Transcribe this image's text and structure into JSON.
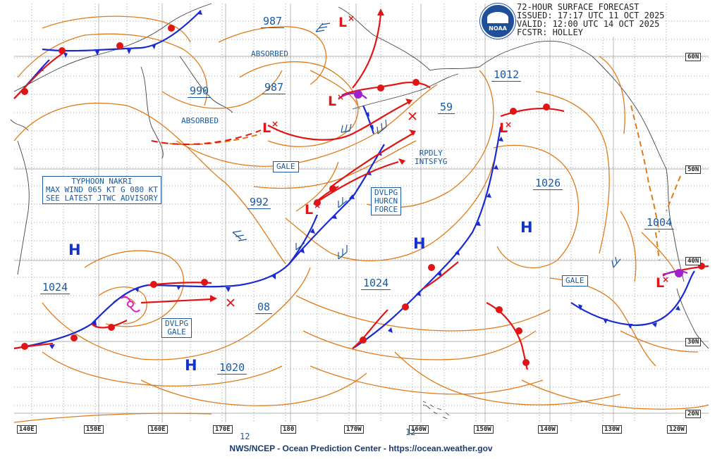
{
  "header": {
    "line1": "72-HOUR SURFACE FORECAST",
    "line2": "ISSUED: 17:17 UTC 11 OCT 2025",
    "line3": "VALID:  12:00 UTC 14 OCT 2025",
    "line4": "FCSTR:  HOLLEY"
  },
  "logo": {
    "text": "NOAA"
  },
  "footer": "NWS/NCEP - Ocean Prediction Center - https://ocean.weather.gov",
  "lon_labels": [
    "140E",
    "150E",
    "160E",
    "170E",
    "180",
    "170W",
    "160W",
    "150W",
    "140W",
    "130W",
    "120W"
  ],
  "lat_labels": [
    "60N",
    "50N",
    "40N",
    "30N",
    "20N"
  ],
  "isobars": {
    "i987a": "987",
    "i987b": "987",
    "i990": "990",
    "i992": "992",
    "i1012": "1012",
    "i59": "59",
    "i1026": "1026",
    "i1004": "1004",
    "i1024a": "1024",
    "i1024b": "1024",
    "i08": "08",
    "i1020": "1020",
    "i12a": "12",
    "i12b": "12"
  },
  "notes": {
    "absorbed1": "ABSORBED",
    "absorbed2": "ABSORBED",
    "rpdly1": "RPDLY",
    "rpdly2": "INTSFYG",
    "gale1": "GALE",
    "gale2": "GALE",
    "dvlpg_gale": [
      "DVLPG",
      "GALE"
    ],
    "dvlpg_hurcn": [
      "DVLPG",
      "HURCN",
      "FORCE"
    ],
    "typhoon": [
      "TYPHOON NAKRI",
      "MAX WIND 065 KT G 080 KT",
      "SEE LATEST JTWC ADVISORY"
    ]
  },
  "pressure_centers": {
    "high": "H",
    "low": "L"
  },
  "colors": {
    "isobar": "#e07b1a",
    "cold_front": "#1a2ad0",
    "warm_front": "#e01515",
    "occluded": "#a020d0",
    "label": "#1a5aa0",
    "grid": "#7a7a7a"
  }
}
